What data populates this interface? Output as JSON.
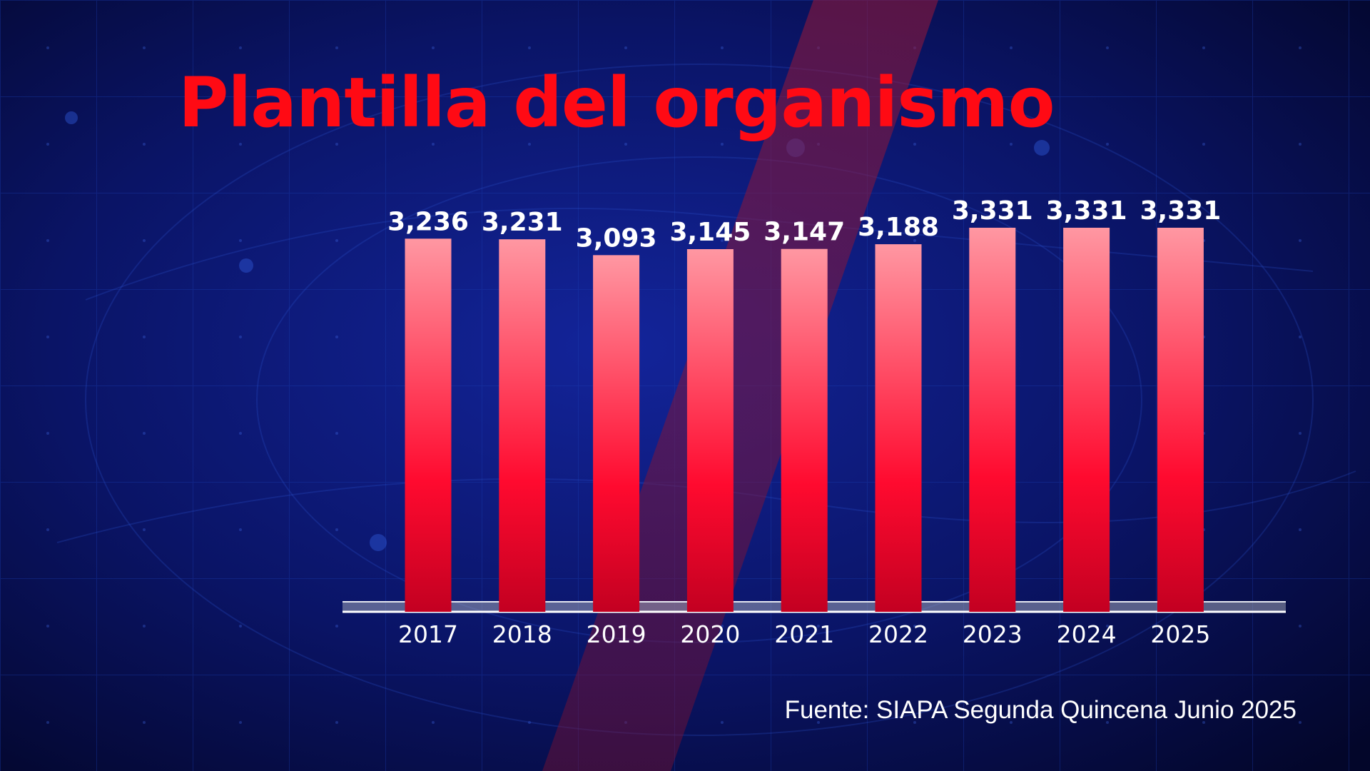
{
  "colors": {
    "background": "#040a3a",
    "grid_line": "#1b3fb5",
    "diagonal_band": "#8a1530",
    "title": "#ff0a14",
    "bar_top": "#ff97a2",
    "bar_mid": "#ff0a2f",
    "bar_bottom": "#c30021",
    "text": "#ffffff"
  },
  "source_note": "Fuente: SIAPA Segunda Quincena Junio 2025",
  "chart_data": {
    "type": "bar",
    "title": "Plantilla del organismo",
    "xlabel": "",
    "ylabel": "",
    "categories": [
      "2017",
      "2018",
      "2019",
      "2020",
      "2021",
      "2022",
      "2023",
      "2024",
      "2025"
    ],
    "values": [
      3236,
      3231,
      3093,
      3145,
      3147,
      3188,
      3331,
      3331,
      3331
    ],
    "value_labels": [
      "3,236",
      "3,231",
      "3,093",
      "3,145",
      "3,147",
      "3,188",
      "3,331",
      "3,331",
      "3,331"
    ],
    "ylim": [
      0,
      3331
    ],
    "grid": false,
    "legend": "none"
  }
}
